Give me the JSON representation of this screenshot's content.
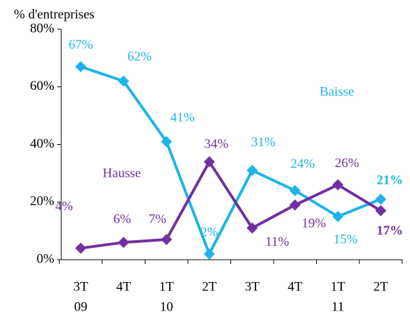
{
  "chart_data": {
    "type": "line",
    "y_axis_title": "% d'entreprises",
    "categories": [
      [
        "3T",
        "09"
      ],
      [
        "4T"
      ],
      [
        "1T",
        "10"
      ],
      [
        "2T"
      ],
      [
        "3T"
      ],
      [
        "4T"
      ],
      [
        "1T",
        "11"
      ],
      [
        "2T"
      ]
    ],
    "series": [
      {
        "name": "Baisse",
        "color": "#1eb4e8",
        "values": [
          67,
          62,
          41,
          2,
          31,
          24,
          15,
          21
        ],
        "value_labels": [
          "67%",
          "62%",
          "41%",
          "2%",
          "31%",
          "24%",
          "15%",
          "21%"
        ]
      },
      {
        "name": "Hausse",
        "color": "#7030a0",
        "values": [
          4,
          6,
          7,
          34,
          11,
          19,
          26,
          17
        ],
        "value_labels": [
          "4%",
          "6%",
          "7%",
          "34%",
          "11%",
          "19%",
          "26%",
          "17%"
        ]
      }
    ],
    "ylim": [
      0,
      80
    ],
    "yticks": [
      {
        "value": 0,
        "label": "0%"
      },
      {
        "value": 20,
        "label": "20%"
      },
      {
        "value": 40,
        "label": "40%"
      },
      {
        "value": 60,
        "label": "60%"
      },
      {
        "value": 80,
        "label": "80%"
      }
    ]
  }
}
